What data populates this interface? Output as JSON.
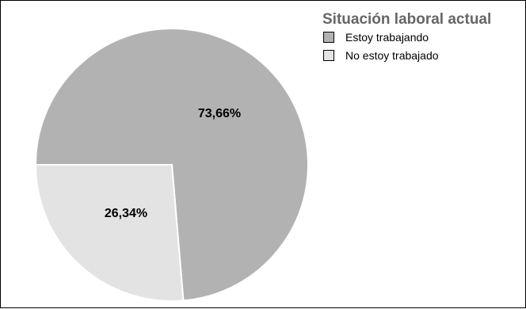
{
  "chart_data": {
    "type": "pie",
    "legend_title": "Situación laboral actual",
    "legend_position": "top-right",
    "slices": [
      {
        "label": "Estoy trabajando",
        "value": 73.66,
        "display": "73,66%",
        "color": "#b2b2b2"
      },
      {
        "label": "No estoy trabajado",
        "value": 26.34,
        "display": "26,34%",
        "color": "#e3e3e3"
      }
    ]
  }
}
